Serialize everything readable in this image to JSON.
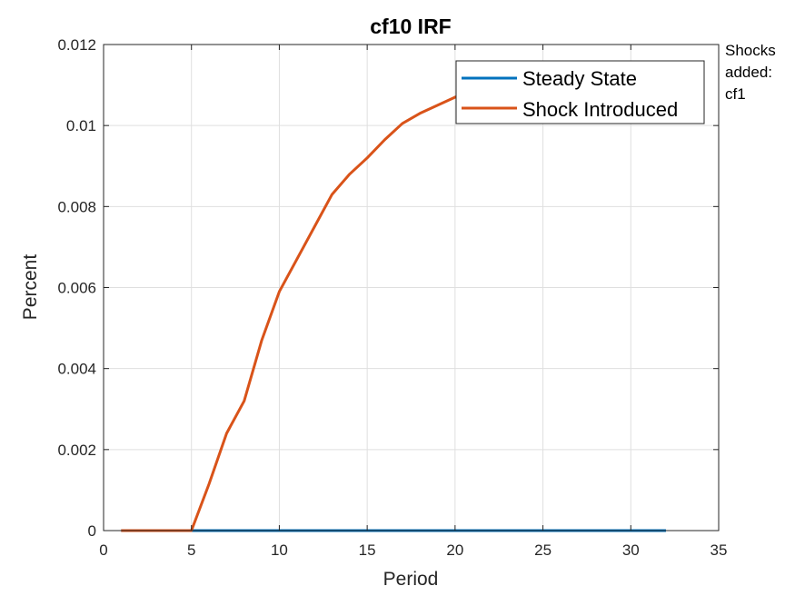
{
  "annotation": {
    "lines": [
      "Shocks",
      "added:",
      "cf1"
    ]
  },
  "chart_data": {
    "type": "line",
    "title": "cf10 IRF",
    "xlabel": "Period",
    "ylabel": "Percent",
    "xlim": [
      0,
      35
    ],
    "ylim": [
      0,
      0.012
    ],
    "xticks": [
      0,
      5,
      10,
      15,
      20,
      25,
      30,
      35
    ],
    "yticks": [
      0,
      0.002,
      0.004,
      0.006,
      0.008,
      0.01,
      0.012
    ],
    "xtick_labels": [
      "0",
      "5",
      "10",
      "15",
      "20",
      "25",
      "30",
      "35"
    ],
    "ytick_labels": [
      "0",
      "0.002",
      "0.004",
      "0.006",
      "0.008",
      "0.01",
      "0.012"
    ],
    "grid": true,
    "legend_position": "top-right",
    "series": [
      {
        "name": "Steady State",
        "color": "#0072BD",
        "x": [
          1,
          2,
          3,
          4,
          5,
          6,
          7,
          8,
          9,
          10,
          11,
          12,
          13,
          14,
          15,
          16,
          17,
          18,
          19,
          20,
          21,
          22,
          23,
          24,
          25,
          26,
          27,
          28,
          29,
          30,
          31,
          32
        ],
        "y": [
          0,
          0,
          0,
          0,
          0,
          0,
          0,
          0,
          0,
          0,
          0,
          0,
          0,
          0,
          0,
          0,
          0,
          0,
          0,
          0,
          0,
          0,
          0,
          0,
          0,
          0,
          0,
          0,
          0,
          0,
          0,
          0
        ]
      },
      {
        "name": "Shock Introduced",
        "color": "#D95319",
        "x": [
          1,
          2,
          3,
          4,
          5,
          6,
          7,
          8,
          9,
          10,
          11,
          12,
          13,
          14,
          15,
          16,
          17,
          18,
          19,
          20,
          21,
          22,
          23,
          24,
          25,
          26,
          27,
          28,
          29,
          30,
          31,
          32
        ],
        "y": [
          0,
          0,
          0,
          0,
          0,
          0.00115,
          0.0024,
          0.0032,
          0.0047,
          0.0059,
          0.0067,
          0.0075,
          0.0083,
          0.0088,
          0.0092,
          0.00965,
          0.01005,
          0.0103,
          0.0105,
          0.0107,
          0.01085,
          0.011,
          0.0111,
          0.0112,
          0.0113,
          0.0113,
          0.01135,
          0.0114,
          0.0114,
          0.0114,
          0.01145,
          0.01145
        ]
      }
    ]
  }
}
